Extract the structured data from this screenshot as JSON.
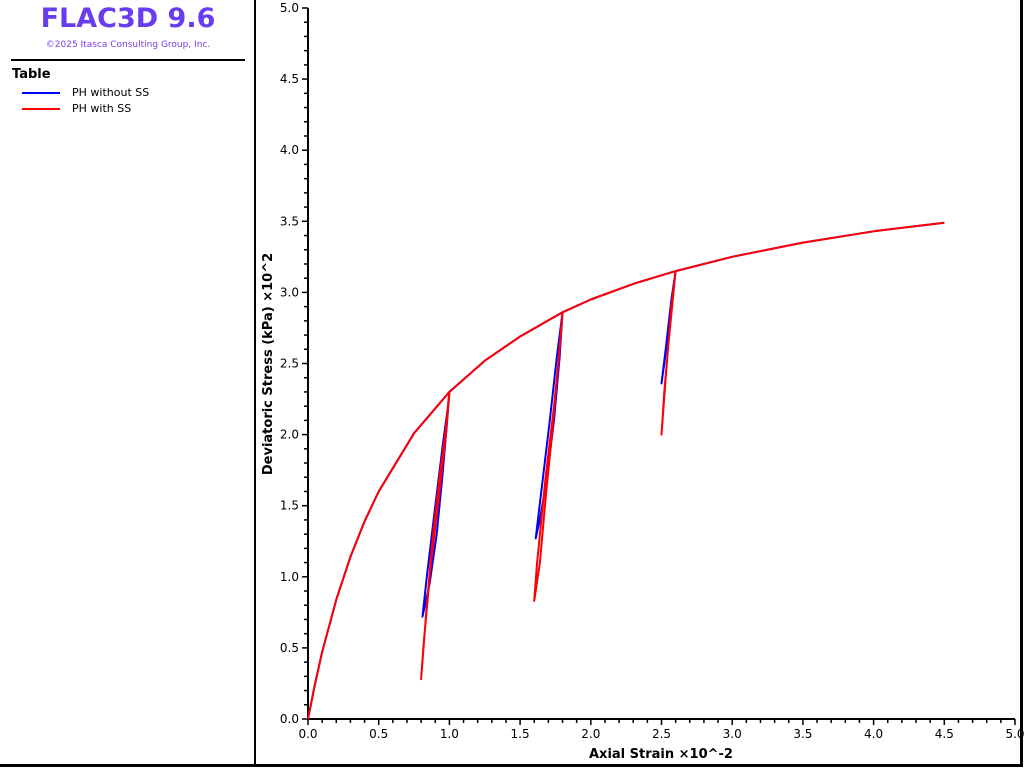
{
  "header": {
    "title": "FLAC3D 9.6",
    "copyright": "©2025 Itasca Consulting Group, Inc."
  },
  "legend": {
    "title": "Table",
    "items": [
      {
        "label": "PH without SS",
        "color": "#0000ff"
      },
      {
        "label": "PH with SS",
        "color": "#ff0000"
      }
    ]
  },
  "chart_data": {
    "type": "line",
    "xlabel": "Axial Strain ×10^-2",
    "ylabel": "Deviatoric Stress (kPa) ×10^2",
    "xlim": [
      0,
      5.0
    ],
    "ylim": [
      0,
      5.0
    ],
    "xticks": [
      "0.0",
      "0.5",
      "1.0",
      "1.5",
      "2.0",
      "2.5",
      "3.0",
      "3.5",
      "4.0",
      "4.5",
      "5.0"
    ],
    "yticks": [
      "0.0",
      "0.5",
      "1.0",
      "1.5",
      "2.0",
      "2.5",
      "3.0",
      "3.5",
      "4.0",
      "4.5",
      "5.0"
    ],
    "grid": false,
    "legend_position": "left-panel",
    "series": [
      {
        "name": "PH without SS",
        "color": "#0000ff",
        "x": [
          0,
          0.05,
          0.1,
          0.2,
          0.3,
          0.4,
          0.5,
          0.75,
          1.0,
          0.98,
          0.95,
          0.91,
          0.86,
          0.81,
          0.84,
          0.9,
          0.95,
          0.99,
          1.0,
          1.25,
          1.5,
          1.8,
          1.78,
          1.74,
          1.69,
          1.64,
          1.61,
          1.65,
          1.71,
          1.76,
          1.79,
          1.8,
          2.0,
          2.3,
          2.6,
          2.58,
          2.55,
          2.52,
          2.5,
          2.53,
          2.57,
          2.6,
          3.0,
          3.5,
          4.0,
          4.5
        ],
        "y": [
          0,
          0.25,
          0.47,
          0.84,
          1.14,
          1.39,
          1.6,
          2.01,
          2.3,
          2.05,
          1.7,
          1.3,
          0.95,
          0.72,
          1.0,
          1.5,
          1.9,
          2.2,
          2.3,
          2.52,
          2.69,
          2.86,
          2.55,
          2.1,
          1.7,
          1.4,
          1.27,
          1.6,
          2.1,
          2.55,
          2.78,
          2.86,
          2.95,
          3.06,
          3.15,
          3.0,
          2.75,
          2.5,
          2.36,
          2.6,
          2.95,
          3.15,
          3.25,
          3.35,
          3.43,
          3.49
        ]
      },
      {
        "name": "PH with SS",
        "color": "#ff0000",
        "x": [
          0,
          0.05,
          0.1,
          0.2,
          0.3,
          0.4,
          0.5,
          0.75,
          1.0,
          0.97,
          0.93,
          0.885,
          0.84,
          0.8,
          0.82,
          0.87,
          0.93,
          0.975,
          1.0,
          1.25,
          1.5,
          1.8,
          1.77,
          1.73,
          1.68,
          1.64,
          1.6,
          1.62,
          1.68,
          1.74,
          1.78,
          1.8,
          2.0,
          2.3,
          2.6,
          2.58,
          2.55,
          2.52,
          2.5,
          2.53,
          2.57,
          2.6,
          3.0,
          3.5,
          4.0,
          4.5
        ],
        "y": [
          0,
          0.25,
          0.47,
          0.84,
          1.14,
          1.39,
          1.6,
          2.01,
          2.3,
          2.0,
          1.7,
          1.3,
          0.8,
          0.28,
          0.55,
          1.1,
          1.6,
          2.0,
          2.3,
          2.52,
          2.69,
          2.86,
          2.5,
          2.05,
          1.55,
          1.1,
          0.83,
          1.1,
          1.7,
          2.2,
          2.6,
          2.86,
          2.95,
          3.06,
          3.15,
          2.95,
          2.65,
          2.3,
          2.0,
          2.4,
          2.9,
          3.15,
          3.25,
          3.35,
          3.43,
          3.49
        ]
      }
    ]
  }
}
